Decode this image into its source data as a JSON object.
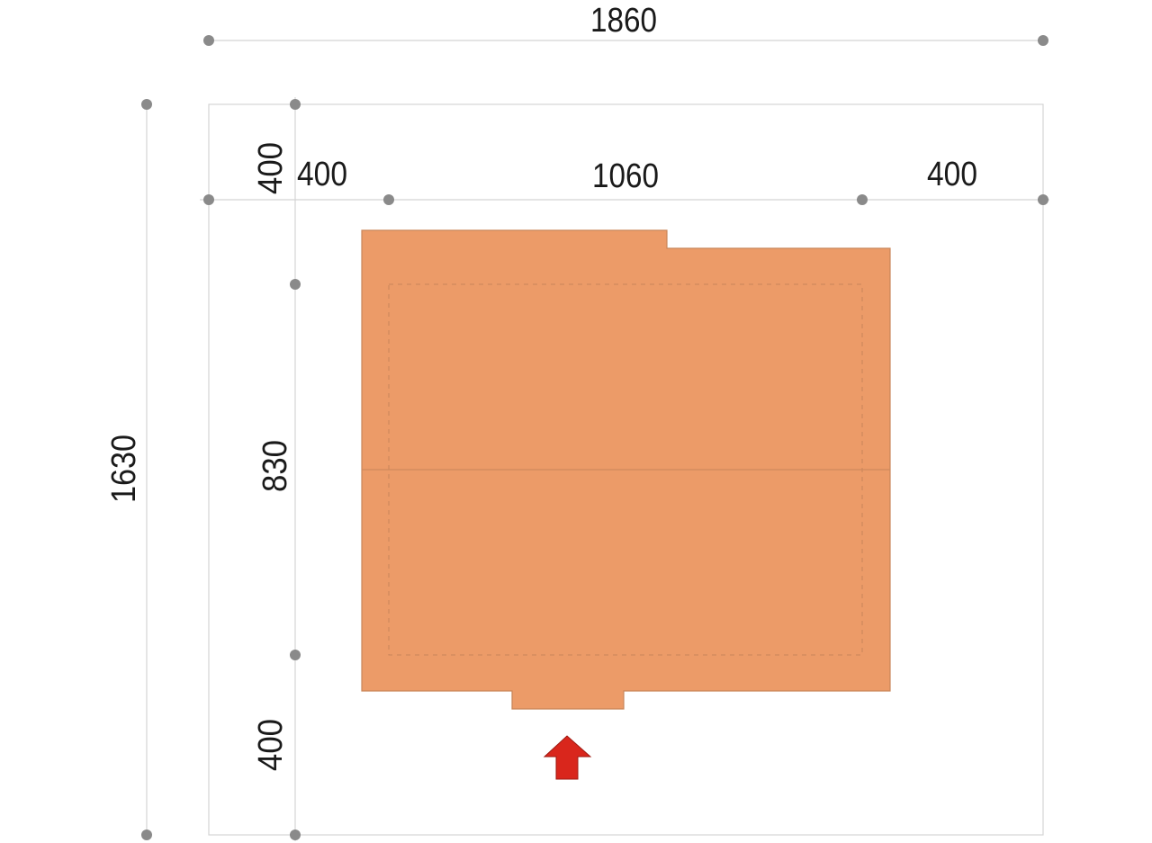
{
  "dimensions": {
    "total_width": "1860",
    "total_depth": "1630",
    "left_setback": "400",
    "building_width": "1060",
    "right_setback": "400",
    "front_setback_top": "400",
    "building_depth": "830",
    "rear_setback_bottom": "400"
  },
  "colors": {
    "building_fill": "#EC9B68",
    "building_outline": "#C9865A",
    "entrance_arrow": "#D9261C",
    "dimension_dot": "#8A8A8A",
    "grid_line": "#D4D4D4"
  },
  "icons": {
    "entrance": "arrow-up-icon"
  }
}
